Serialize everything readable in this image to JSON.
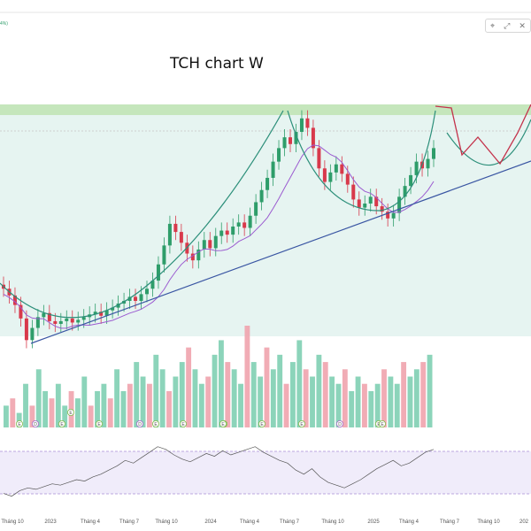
{
  "chart_data": {
    "type": "candlestick",
    "title": "TCH chart W",
    "top_label": "4%)",
    "x_tick_labels": [
      "Tháng 10",
      "2023",
      "Tháng 4",
      "Tháng 7",
      "Tháng 10",
      "2024",
      "Tháng 4",
      "Tháng 7",
      "Tháng 10",
      "2025",
      "Tháng 4",
      "Tháng 7",
      "Tháng 10",
      "202"
    ],
    "price_close": [
      13,
      12.5,
      11.8,
      10.8,
      9.2,
      10.1,
      10.9,
      11.2,
      10.6,
      10.4,
      10.6,
      10.8,
      10.5,
      10.7,
      10.9,
      11.1,
      11.3,
      11.0,
      11.4,
      11.6,
      11.9,
      12.1,
      12.4,
      12.1,
      12.6,
      13.0,
      13.6,
      14.8,
      16.2,
      17.8,
      17.2,
      16.4,
      15.6,
      15.1,
      15.9,
      16.6,
      16.0,
      16.9,
      17.3,
      17.0,
      17.6,
      17.9,
      17.5,
      18.4,
      19.4,
      20.3,
      21.2,
      22.4,
      23.4,
      24.2,
      23.7,
      24.6,
      25.6,
      24.9,
      23.4,
      21.9,
      20.9,
      21.6,
      22.2,
      21.5,
      20.7,
      19.6,
      19.0,
      19.3,
      19.8,
      19.1,
      18.7,
      18.2,
      18.6,
      19.8,
      20.6,
      21.4,
      22.4,
      21.9,
      22.6,
      23.4
    ],
    "ma_line_note": "moving average trails price",
    "volume_bars": [
      3,
      4,
      2,
      6,
      3,
      8,
      5,
      4,
      6,
      3,
      5,
      4,
      7,
      3,
      5,
      6,
      4,
      8,
      5,
      6,
      9,
      7,
      6,
      10,
      8,
      5,
      7,
      9,
      11,
      8,
      6,
      7,
      10,
      12,
      9,
      8,
      6,
      14,
      9,
      7,
      11,
      8,
      10,
      6,
      9,
      12,
      8,
      7,
      10,
      9,
      7,
      6,
      8,
      5,
      7,
      6,
      5,
      6,
      8,
      7,
      6,
      9,
      7,
      8,
      9,
      10
    ],
    "volume_markers": [
      "E",
      "D",
      "E",
      "E",
      "E",
      "D",
      "E",
      "E",
      "E",
      "E",
      "E",
      "E",
      "D",
      "E",
      "E"
    ],
    "rsi": [
      38,
      36,
      40,
      42,
      41,
      43,
      45,
      44,
      46,
      48,
      47,
      50,
      52,
      55,
      58,
      62,
      60,
      64,
      68,
      72,
      70,
      66,
      63,
      61,
      64,
      67,
      65,
      69,
      66,
      68,
      70,
      72,
      68,
      65,
      62,
      60,
      55,
      52,
      56,
      50,
      46,
      44,
      42,
      45,
      48,
      52,
      56,
      59,
      62,
      58,
      60,
      64,
      68,
      70
    ],
    "resistance_zone": "green band at top",
    "overlays": [
      "teal W arcs",
      "red projection zigzag",
      "blue rising trendline"
    ]
  },
  "toolbar": {
    "items": [
      "crosshair-icon",
      "expand-icon",
      "close-icon"
    ],
    "labels": [
      "⌖",
      "⤢",
      "✕"
    ]
  }
}
